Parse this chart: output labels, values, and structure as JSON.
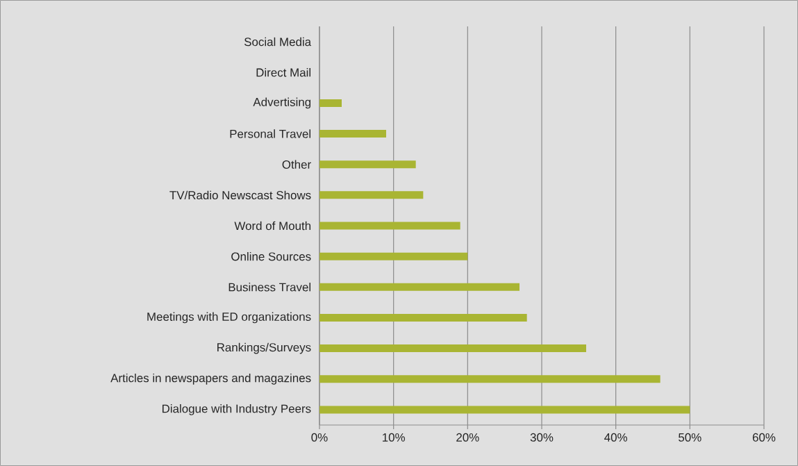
{
  "chart_data": {
    "type": "bar",
    "orientation": "horizontal",
    "categories": [
      "Social Media",
      "Direct Mail",
      "Advertising",
      "Personal Travel",
      "Other",
      "TV/Radio Newscast Shows",
      "Word of Mouth",
      "Online Sources",
      "Business Travel",
      "Meetings with ED organizations",
      "Rankings/Surveys",
      "Articles in newspapers and magazines",
      "Dialogue with Industry Peers"
    ],
    "values": [
      0,
      0,
      3,
      9,
      13,
      14,
      19,
      20,
      27,
      28,
      36,
      46,
      50
    ],
    "color": "#a9b533",
    "xlim": [
      0,
      60
    ],
    "xticks": [
      {
        "value": 0,
        "label": "0%"
      },
      {
        "value": 10,
        "label": "10%"
      },
      {
        "value": 20,
        "label": "20%"
      },
      {
        "value": 30,
        "label": "30%"
      },
      {
        "value": 40,
        "label": "40%"
      },
      {
        "value": 50,
        "label": "50%"
      },
      {
        "value": 60,
        "label": "60%"
      }
    ],
    "grid": "x"
  }
}
